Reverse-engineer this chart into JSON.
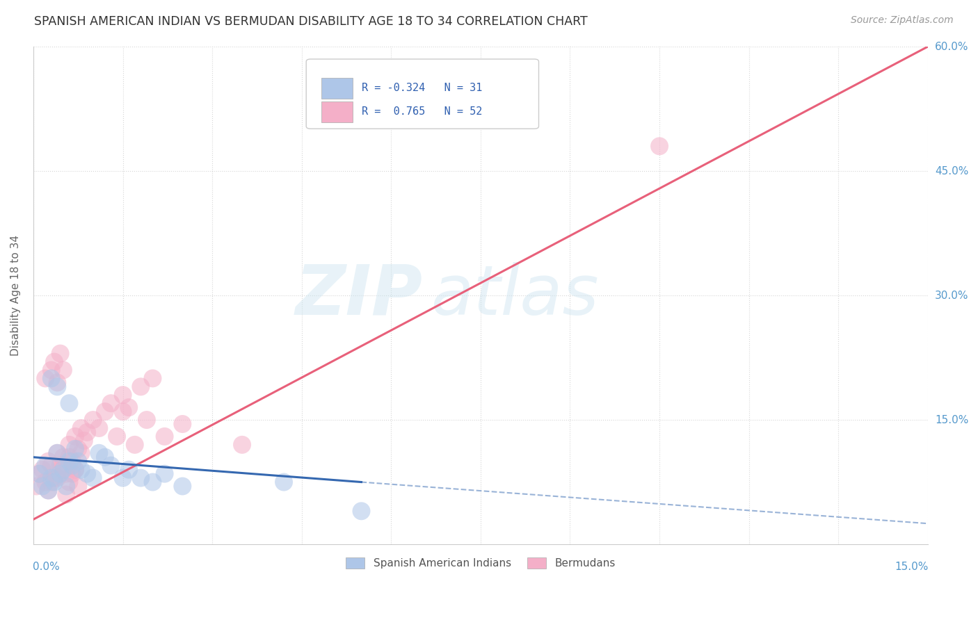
{
  "title": "SPANISH AMERICAN INDIAN VS BERMUDAN DISABILITY AGE 18 TO 34 CORRELATION CHART",
  "source": "Source: ZipAtlas.com",
  "xlim": [
    0.0,
    15.0
  ],
  "ylim": [
    0.0,
    60.0
  ],
  "watermark": "ZIPatlas",
  "blue_R": -0.324,
  "blue_N": 31,
  "pink_R": 0.765,
  "pink_N": 52,
  "blue_color": "#aec6e8",
  "blue_line_color": "#3568b0",
  "pink_color": "#f4afc8",
  "pink_line_color": "#e8607a",
  "legend_label_blue": "Spanish American Indians",
  "legend_label_pink": "Bermudans",
  "blue_scatter_x": [
    0.1,
    0.15,
    0.2,
    0.25,
    0.3,
    0.35,
    0.4,
    0.45,
    0.5,
    0.55,
    0.6,
    0.65,
    0.7,
    0.75,
    0.8,
    0.9,
    1.0,
    1.1,
    1.2,
    1.3,
    1.5,
    1.6,
    1.8,
    2.0,
    2.2,
    2.5,
    0.3,
    0.4,
    0.6,
    4.2,
    5.5
  ],
  "blue_scatter_y": [
    8.5,
    7.0,
    9.5,
    6.5,
    8.0,
    7.5,
    11.0,
    8.5,
    9.0,
    7.0,
    10.0,
    9.5,
    11.5,
    10.0,
    9.0,
    8.5,
    8.0,
    11.0,
    10.5,
    9.5,
    8.0,
    9.0,
    8.0,
    7.5,
    8.5,
    7.0,
    20.0,
    19.0,
    17.0,
    7.5,
    4.0
  ],
  "pink_scatter_x": [
    0.05,
    0.1,
    0.15,
    0.2,
    0.25,
    0.3,
    0.35,
    0.4,
    0.45,
    0.5,
    0.55,
    0.6,
    0.65,
    0.7,
    0.75,
    0.8,
    0.85,
    0.9,
    1.0,
    1.1,
    1.2,
    1.3,
    1.4,
    1.5,
    1.6,
    1.7,
    1.8,
    1.9,
    2.0,
    2.2,
    2.5,
    0.2,
    0.3,
    0.35,
    0.4,
    0.45,
    0.5,
    0.55,
    0.6,
    0.65,
    0.7,
    0.75,
    0.8,
    0.25,
    0.3,
    0.4,
    0.5,
    0.6,
    0.7,
    10.5,
    1.5,
    3.5
  ],
  "pink_scatter_y": [
    7.0,
    8.5,
    9.0,
    7.5,
    10.0,
    9.5,
    8.0,
    11.0,
    9.5,
    10.5,
    8.5,
    12.0,
    10.0,
    13.0,
    11.5,
    14.0,
    12.5,
    13.5,
    15.0,
    14.0,
    16.0,
    17.0,
    13.0,
    18.0,
    16.5,
    12.0,
    19.0,
    15.0,
    20.0,
    13.0,
    14.5,
    20.0,
    21.0,
    22.0,
    19.5,
    23.0,
    21.0,
    6.0,
    7.5,
    8.5,
    9.0,
    7.0,
    11.0,
    6.5,
    7.5,
    8.0,
    9.5,
    10.5,
    9.0,
    48.0,
    16.0,
    12.0
  ],
  "pink_line_x0": 0.0,
  "pink_line_y0": 3.0,
  "pink_line_x1": 15.0,
  "pink_line_y1": 60.0,
  "blue_line_x0": 0.0,
  "blue_line_y0": 10.5,
  "blue_line_x1": 5.5,
  "blue_line_y1": 7.5,
  "blue_dash_x0": 5.5,
  "blue_dash_y0": 7.5,
  "blue_dash_x1": 15.0,
  "blue_dash_y1": 2.5,
  "grid_color": "#cccccc",
  "background_color": "#ffffff",
  "ytick_positions": [
    15,
    30,
    45,
    60
  ],
  "ytick_labels": [
    "15.0%",
    "30.0%",
    "45.0%",
    "60.0%"
  ]
}
